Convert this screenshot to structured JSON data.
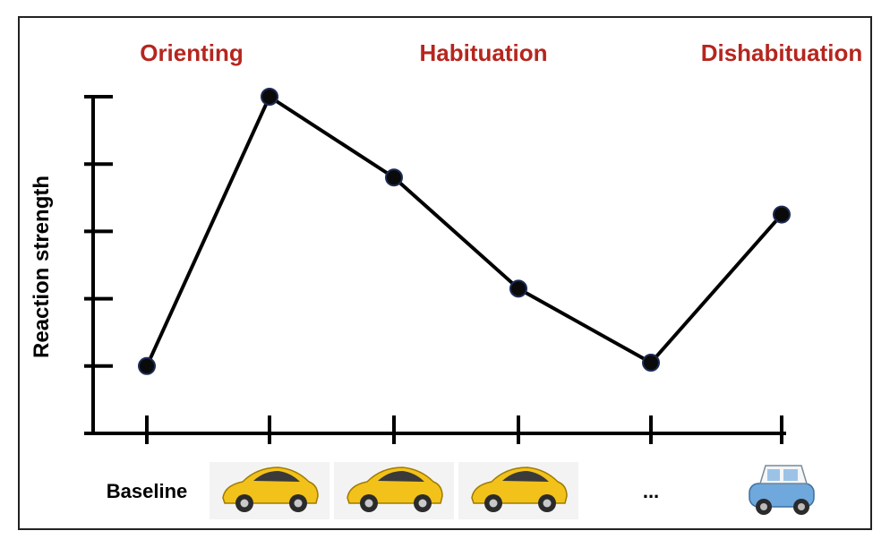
{
  "chart_data": {
    "type": "line",
    "ylabel": "Reaction strength",
    "ylim": [
      0,
      5
    ],
    "phases": [
      "Orienting",
      "Habituation",
      "Dishabituation"
    ],
    "categories": [
      "Baseline",
      "yellow-car",
      "yellow-car",
      "yellow-car",
      "...",
      "blue-car"
    ],
    "category_labels": [
      "Baseline",
      "",
      "",
      "",
      "...",
      ""
    ],
    "category_icons": [
      "",
      "yellow-sports-car-icon",
      "yellow-sports-car-icon",
      "yellow-sports-car-icon",
      "",
      "blue-mini-car-icon"
    ],
    "values": [
      1.0,
      5.0,
      3.8,
      2.15,
      1.05,
      3.25
    ],
    "grid": false
  },
  "colors": {
    "phase_label": "#b5261e",
    "line": "#000000",
    "yellow_car": "#f2c21a",
    "blue_car": "#6fa8dc"
  }
}
